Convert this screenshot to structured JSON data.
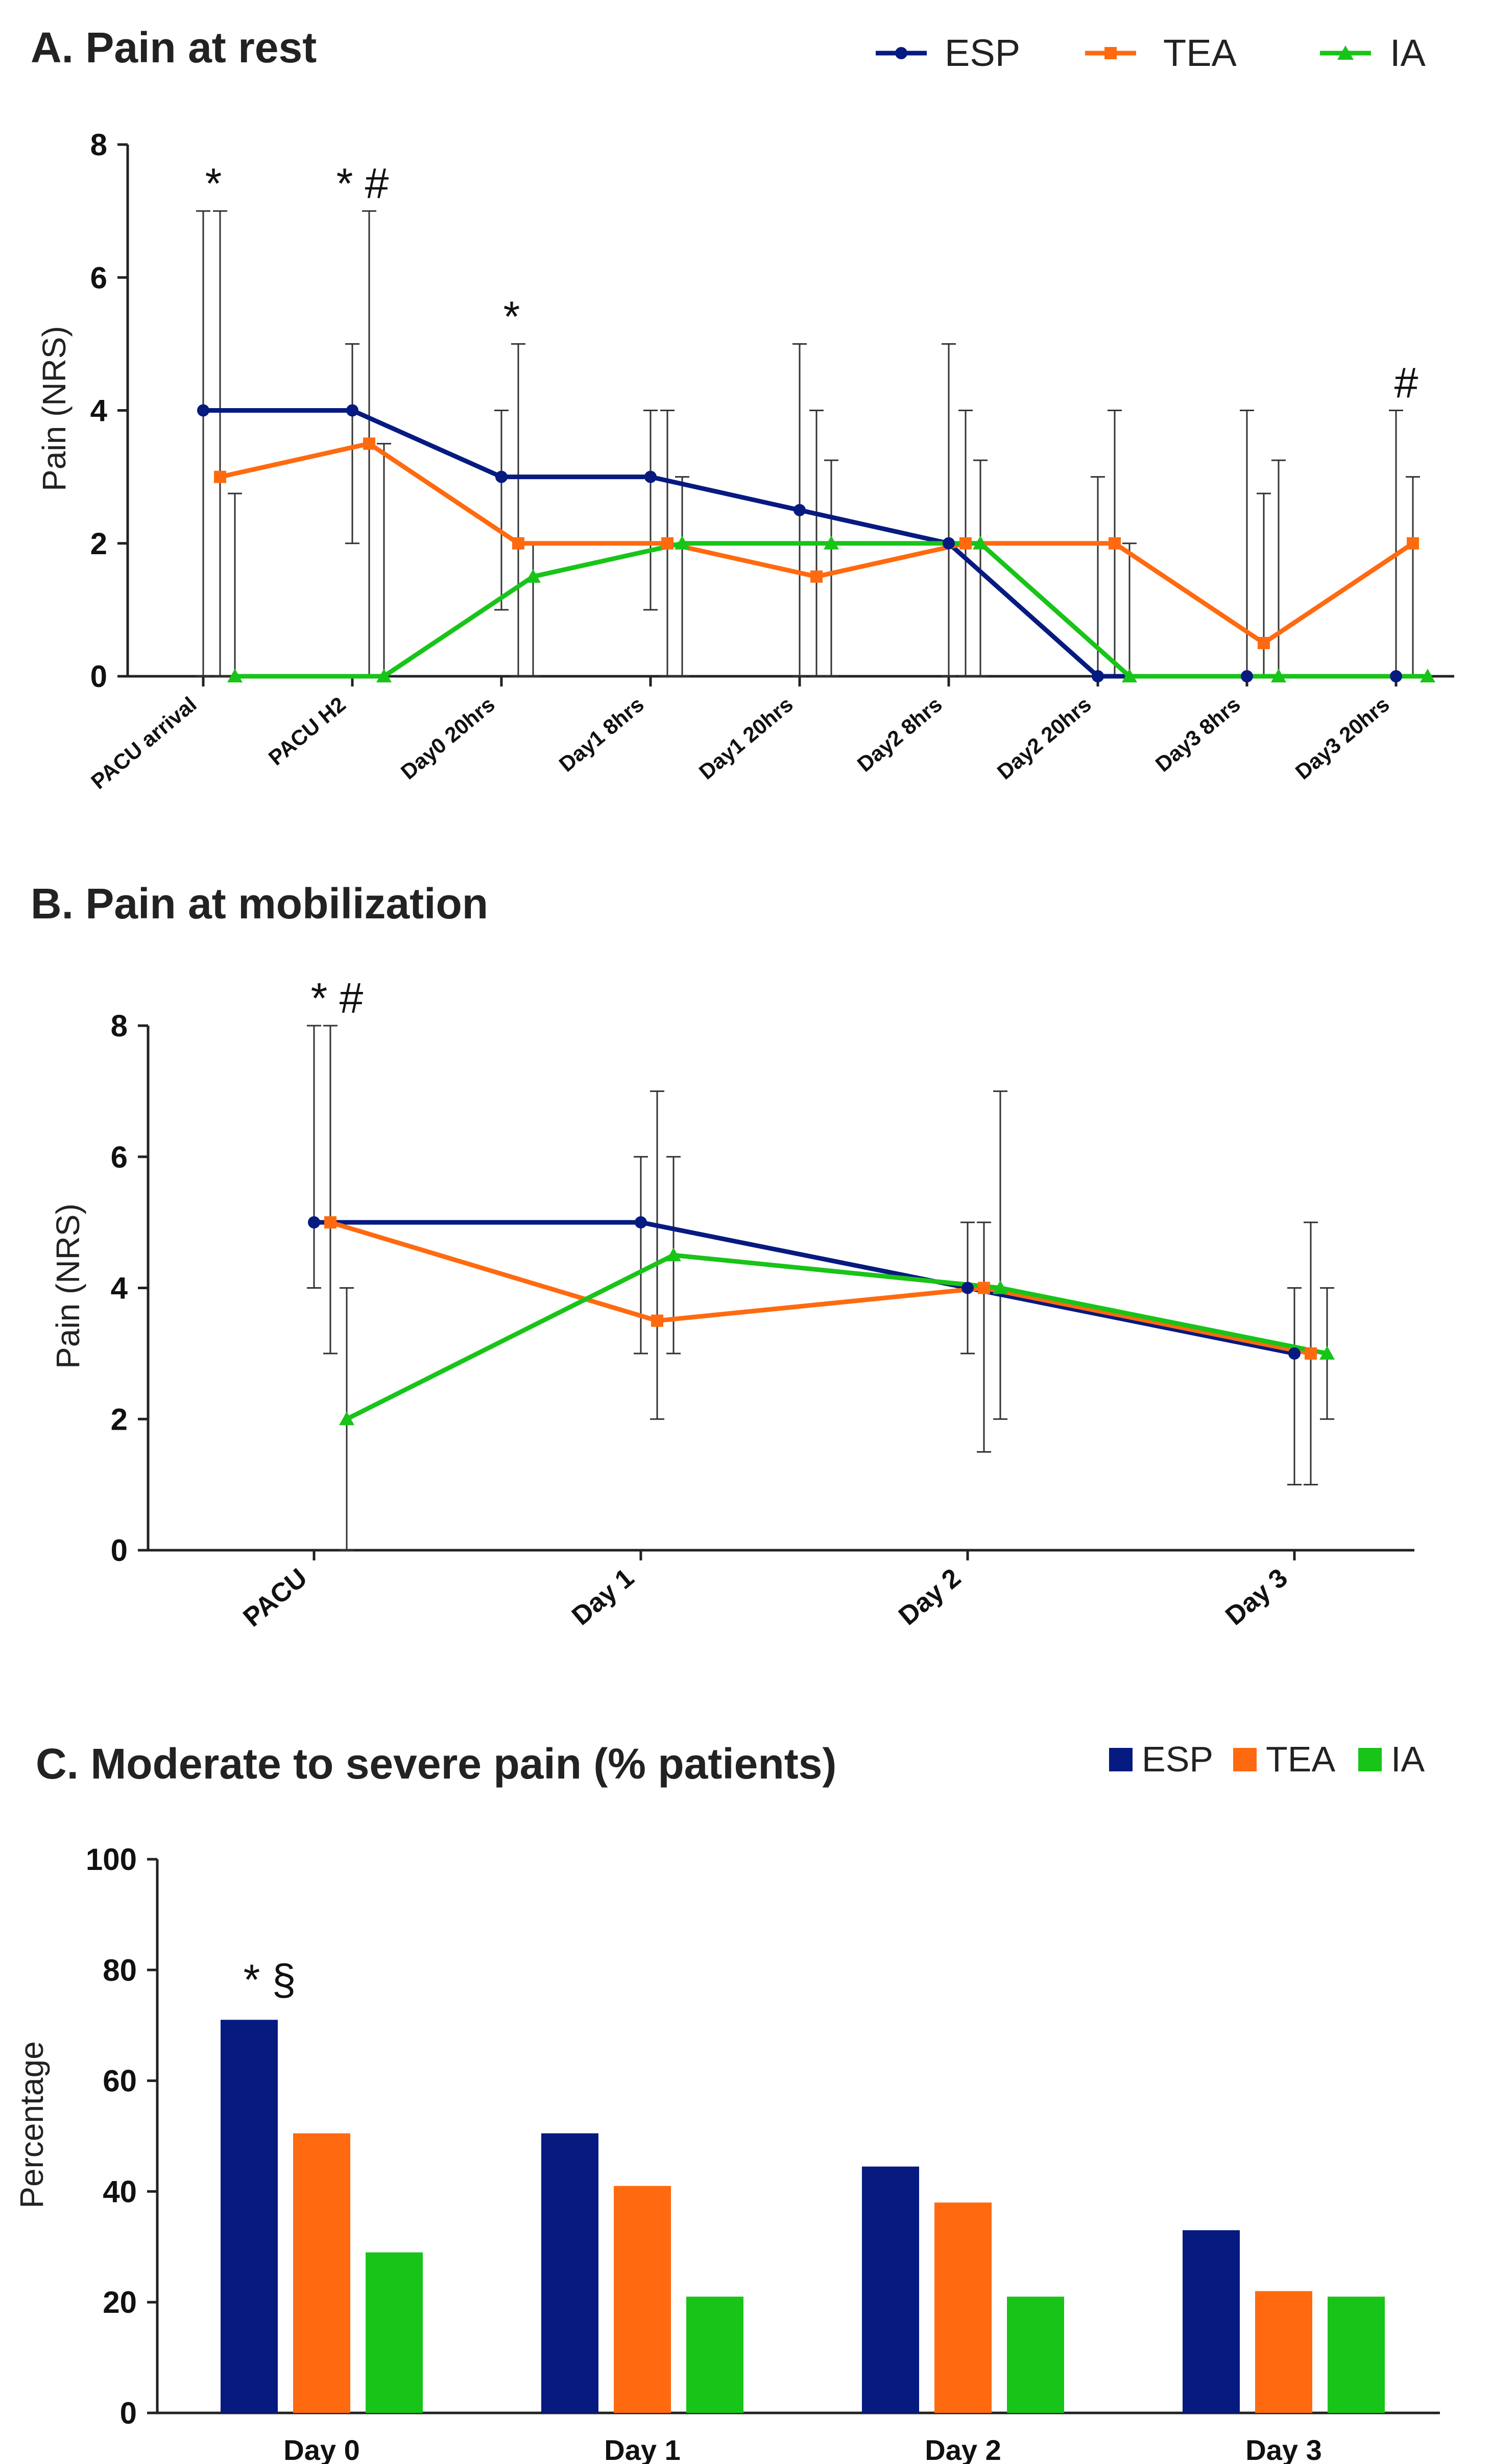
{
  "colors": {
    "ESP": "#061a80",
    "TEA": "#ff6a10",
    "IA": "#18c418"
  },
  "chart_data": [
    {
      "id": "A",
      "type": "line",
      "title": "A. Pain at rest",
      "ylabel": "Pain (NRS)",
      "xlabel": "",
      "ylim": [
        0,
        8
      ],
      "yticks": [
        0,
        2,
        4,
        6,
        8
      ],
      "categories": [
        "PACU arrival",
        "PACU H2",
        "Day0 20hrs",
        "Day1 8hrs",
        "Day1 20hrs",
        "Day2 8hrs",
        "Day2 20hrs",
        "Day3 8hrs",
        "Day3 20hrs"
      ],
      "series": [
        {
          "name": "ESP",
          "values": [
            4,
            4,
            3,
            3,
            2.5,
            2,
            0,
            0,
            0
          ],
          "err_low": [
            0,
            2,
            1,
            1,
            0,
            0,
            0,
            0,
            0
          ],
          "err_high": [
            7,
            5,
            4,
            4,
            5,
            5,
            3,
            4,
            4
          ]
        },
        {
          "name": "TEA",
          "values": [
            3,
            3.5,
            2,
            2,
            1.5,
            2,
            2,
            0.5,
            2
          ],
          "err_low": [
            0,
            0,
            0,
            0,
            0,
            0,
            0,
            0,
            0
          ],
          "err_high": [
            7,
            7,
            5,
            4,
            4,
            4,
            4,
            2.75,
            3
          ]
        },
        {
          "name": "IA",
          "values": [
            0,
            0,
            1.5,
            2,
            2,
            2,
            0,
            0,
            0
          ],
          "err_low": [
            0,
            0,
            0,
            0,
            0,
            0,
            0,
            0,
            0
          ],
          "err_high": [
            2.75,
            3.5,
            2,
            3,
            3.25,
            3.25,
            2,
            3.25,
            0
          ]
        }
      ],
      "annotations": [
        {
          "category": "PACU arrival",
          "text": "*"
        },
        {
          "category": "PACU H2",
          "text": "* #"
        },
        {
          "category": "Day0 20hrs",
          "text": "*"
        },
        {
          "category": "Day3 20hrs",
          "text": "#"
        }
      ],
      "legend": [
        "ESP",
        "TEA",
        "IA"
      ],
      "legend_position": "top-right"
    },
    {
      "id": "B",
      "type": "line",
      "title": "B. Pain at mobilization",
      "ylabel": "Pain (NRS)",
      "xlabel": "",
      "ylim": [
        0,
        8
      ],
      "yticks": [
        0,
        2,
        4,
        6,
        8
      ],
      "categories": [
        "PACU",
        "Day 1",
        "Day 2",
        "Day 3"
      ],
      "series": [
        {
          "name": "ESP",
          "values": [
            5,
            5,
            4,
            3
          ],
          "err_low": [
            4,
            3,
            3,
            1
          ],
          "err_high": [
            8,
            6,
            5,
            4
          ]
        },
        {
          "name": "TEA",
          "values": [
            5,
            3.5,
            4,
            3
          ],
          "err_low": [
            3,
            2,
            1.5,
            1
          ],
          "err_high": [
            8,
            7,
            5,
            5
          ]
        },
        {
          "name": "IA",
          "values": [
            2,
            4.5,
            4,
            3
          ],
          "err_low": [
            0,
            3,
            2,
            2
          ],
          "err_high": [
            4,
            6,
            7,
            4
          ]
        }
      ],
      "annotations": [
        {
          "category": "PACU",
          "text": "* #"
        }
      ]
    },
    {
      "id": "C",
      "type": "bar",
      "title": "C. Moderate to severe pain (% patients)",
      "ylabel": "Percentage",
      "xlabel": "",
      "ylim": [
        0,
        100
      ],
      "yticks": [
        0,
        20,
        40,
        60,
        80,
        100
      ],
      "categories": [
        "Day 0",
        "Day 1",
        "Day 2",
        "Day 3"
      ],
      "series": [
        {
          "name": "ESP",
          "values": [
            71,
            50.5,
            44.5,
            33
          ]
        },
        {
          "name": "TEA",
          "values": [
            50.5,
            41,
            38,
            22
          ]
        },
        {
          "name": "IA",
          "values": [
            29,
            21,
            21,
            21
          ]
        }
      ],
      "annotations": [
        {
          "category": "Day 0",
          "text": "* §"
        }
      ],
      "legend": [
        "ESP",
        "TEA",
        "IA"
      ],
      "legend_position": "top-right"
    }
  ]
}
